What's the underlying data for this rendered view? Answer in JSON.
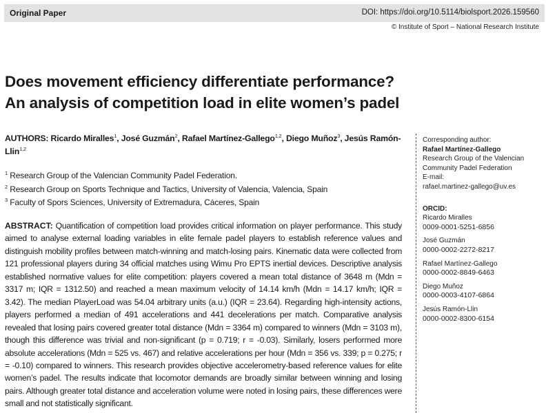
{
  "header": {
    "label": "Original Paper",
    "doi": "DOI: https://doi.org/10.5114/biolsport.2026.159560",
    "copyright": "© Institute of Sport – National Research Institute"
  },
  "title": [
    "Does movement efficiency differentiate performance?",
    "An analysis of competition load in elite women’s padel"
  ],
  "authors": {
    "label": "AUTHORS:",
    "list": [
      {
        "text": "Ricardo Miralles",
        "sup": "1"
      },
      {
        "text": ", José Guzmán",
        "sup": "2"
      },
      {
        "text": ", Rafael Martínez-Gallego",
        "sup": "1,2"
      },
      {
        "text": ", Diego Muñoz",
        "sup": "3"
      },
      {
        "text": ", Jesús Ramón-Llin",
        "sup": "1,2"
      }
    ]
  },
  "affiliations": [
    {
      "sup": "1",
      "text": "Research Group of the Valencian Community Padel Federation."
    },
    {
      "sup": "2",
      "text": "Research Group on Sports Technique and Tactics, University of Valencia, Valencia, Spain"
    },
    {
      "sup": "3",
      "text": "Faculty of Spors Sciences, University of Extremadura, Cáceres, Spain"
    }
  ],
  "abstract": {
    "label": "ABSTRACT:",
    "text": "Quantification of competition load provides critical information on player performance. This study aimed to analyse external loading variables in elite female padel players to establish reference values and distinguish mobility profiles between match-winning and match-losing pairs. Kinematic data were collected from 121 professional players during 34 official matches using Wimu Pro EPTS inertial devices. Descriptive analysis established normative values for elite competition: players covered a mean total distance of 3648 m (Mdn = 3317 m; IQR = 1312.50) and reached a mean maximum velocity of 14.14 km/h (Mdn = 14.17 km/h; IQR = 3.42). The median PlayerLoad was 54.04 arbitrary units (a.u.) (IQR = 23.64). Regarding high-intensity actions, players performed a median of 491 accelerations and 441 decelerations per match. Comparative analysis revealed that losing pairs covered greater total distance (Mdn = 3364 m) compared to winners (Mdn = 3103 m), though this difference was trivial and non-significant (p = 0.719; r = -0.03). Similarly, losers performed more absolute accelerations (Mdn = 525 vs. 467) and relative accelerations per hour (Mdn = 356 vs. 339; p = 0.275; r = -0.10) compared to winners. This research provides objective accelerometry-based reference values for elite women’s padel. The results indicate that locomotor demands are broadly similar between winning and losing pairs. Although greater total distance and acceleration volume were noted in losing pairs, these differences were small and not statistically significant."
  },
  "corresponding": {
    "label": "Corresponding author:",
    "name": "Rafael Martínez-Gallego",
    "lines": [
      "Research Group of the Valencian",
      "Community Padel Federation",
      "E-mail:",
      "rafael.martinez-gallego@uv.es"
    ]
  },
  "orcid": {
    "label": "ORCID:",
    "entries": [
      {
        "name": "Ricardo Miralles",
        "id": "0009-0001-5251-6856"
      },
      {
        "name": "José Guzmán",
        "id": "0000-0002-2272-8217"
      },
      {
        "name": "Rafael Martínez-Gallego",
        "id": "0000-0002-8849-6463"
      },
      {
        "name": "Diego Muñoz",
        "id": "0000-0003-4107-6864"
      },
      {
        "name": "Jesús Ramón-Llin",
        "id": "0000-0002-8300-6154"
      }
    ]
  }
}
